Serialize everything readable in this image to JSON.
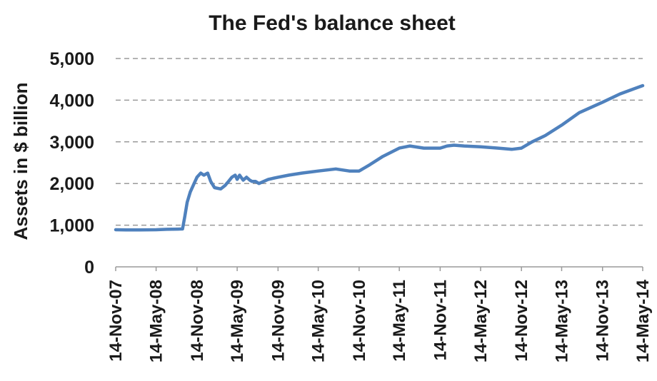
{
  "chart_data": {
    "type": "line",
    "title": "The Fed's balance sheet",
    "xlabel": "",
    "ylabel": "Assets in $ billion",
    "ylim": [
      0,
      5000
    ],
    "yticks": [
      "0",
      "1,000",
      "2,000",
      "3,000",
      "4,000",
      "5,000"
    ],
    "ytick_values": [
      0,
      1000,
      2000,
      3000,
      4000,
      5000
    ],
    "xticks": [
      "14-Nov-07",
      "14-May-08",
      "14-Nov-08",
      "14-May-09",
      "14-Nov-09",
      "14-May-10",
      "14-Nov-10",
      "14-May-11",
      "14-Nov-11",
      "14-May-12",
      "14-Nov-12",
      "14-May-13",
      "14-Nov-13",
      "14-May-14"
    ],
    "xtick_dates": [
      "2007-11-14",
      "2008-05-14",
      "2008-11-14",
      "2009-05-14",
      "2009-11-14",
      "2010-05-14",
      "2010-11-14",
      "2011-05-14",
      "2011-11-14",
      "2012-05-14",
      "2012-11-14",
      "2013-05-14",
      "2013-11-14",
      "2014-05-14"
    ],
    "xlim": [
      "2007-11-14",
      "2014-05-14"
    ],
    "grid": true,
    "legend": "none",
    "line_color": "#4f81bd",
    "series": [
      {
        "x": [
          "2007-11-14",
          "2008-01-01",
          "2008-03-01",
          "2008-05-14",
          "2008-07-01",
          "2008-08-20",
          "2008-09-10",
          "2008-09-20",
          "2008-10-01",
          "2008-10-15",
          "2008-11-01",
          "2008-11-14",
          "2008-12-01",
          "2008-12-15",
          "2009-01-01",
          "2009-01-15",
          "2009-02-01",
          "2009-03-01",
          "2009-03-20",
          "2009-04-05",
          "2009-04-20",
          "2009-05-05",
          "2009-05-14",
          "2009-05-25",
          "2009-06-10",
          "2009-06-25",
          "2009-07-10",
          "2009-07-20",
          "2009-08-05",
          "2009-08-20",
          "2009-09-10",
          "2009-10-01",
          "2009-11-14",
          "2010-01-01",
          "2010-03-01",
          "2010-05-14",
          "2010-08-01",
          "2010-10-01",
          "2010-11-14",
          "2011-01-01",
          "2011-03-01",
          "2011-05-14",
          "2011-07-01",
          "2011-09-01",
          "2011-11-14",
          "2011-12-15",
          "2012-01-15",
          "2012-03-01",
          "2012-05-14",
          "2012-08-01",
          "2012-10-01",
          "2012-11-14",
          "2013-01-01",
          "2013-03-01",
          "2013-05-14",
          "2013-08-01",
          "2013-11-14",
          "2014-02-01",
          "2014-05-14"
        ],
        "y": [
          890,
          885,
          885,
          890,
          900,
          905,
          910,
          1200,
          1550,
          1800,
          2000,
          2150,
          2250,
          2200,
          2250,
          2050,
          1900,
          1870,
          1950,
          2050,
          2150,
          2200,
          2100,
          2200,
          2080,
          2150,
          2080,
          2050,
          2050,
          2000,
          2050,
          2100,
          2150,
          2200,
          2250,
          2300,
          2350,
          2300,
          2300,
          2450,
          2650,
          2850,
          2900,
          2850,
          2850,
          2900,
          2920,
          2900,
          2880,
          2850,
          2820,
          2850,
          3000,
          3150,
          3400,
          3700,
          3950,
          4150,
          4350
        ]
      }
    ]
  }
}
